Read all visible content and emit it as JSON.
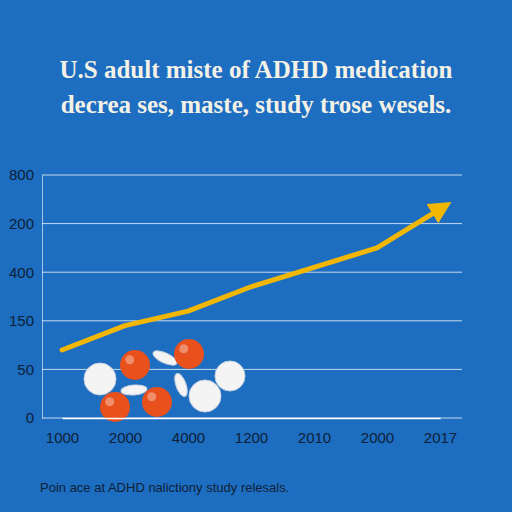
{
  "chart_data": {
    "type": "line",
    "title": "U.S adult miste of ADHD medication decrea ses, maste, study trose wesels.",
    "footnote": "Poin ace at ADHD nalictiony study relesals.",
    "categories": [
      "1000",
      "2000",
      "4000",
      "1200",
      "2010",
      "2000",
      "2017"
    ],
    "y_categories": [
      "0",
      "50",
      "150",
      "400",
      "200",
      "800"
    ],
    "values": [
      1.4,
      1.9,
      2.2,
      2.7,
      3.1,
      3.5,
      4.3
    ],
    "color": "#f2b705",
    "grid": true,
    "marker": "arrow"
  }
}
